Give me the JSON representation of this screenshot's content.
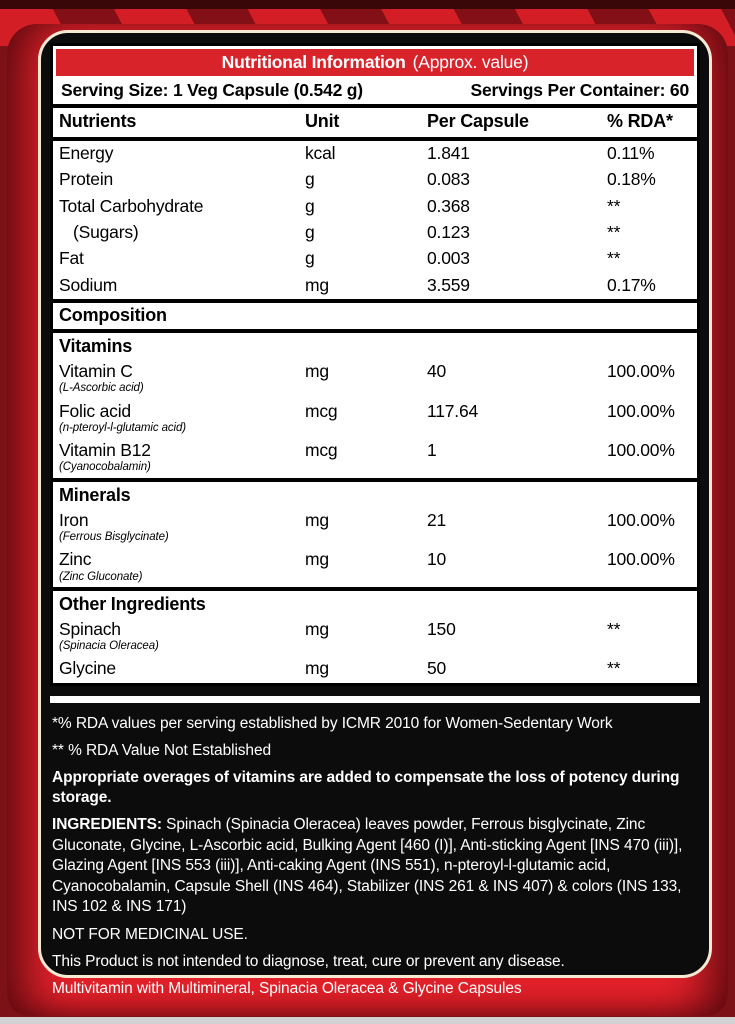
{
  "colors": {
    "brand_red": "#e2222b",
    "title_bar_red": "#d8232b",
    "panel_black": "#0c0c0c",
    "outline_cream": "#f5e9d4"
  },
  "title_bar": {
    "title": "Nutritional Information",
    "subtitle": "(Approx. value)"
  },
  "serving": {
    "size": "Serving Size: 1 Veg Capsule (0.542 g)",
    "per_container": "Servings Per Container: 60"
  },
  "table": {
    "columns": [
      "Nutrients",
      "Unit",
      "Per Capsule",
      "% RDA*"
    ],
    "rows": [
      {
        "name": "Energy",
        "unit": "kcal",
        "per_capsule": "1.841",
        "rda": "0.11%"
      },
      {
        "name": "Protein",
        "unit": "g",
        "per_capsule": "0.083",
        "rda": "0.18%"
      },
      {
        "name": "Total Carbohydrate",
        "unit": "g",
        "per_capsule": "0.368",
        "rda": "**"
      },
      {
        "name": "(Sugars)",
        "unit": "g",
        "per_capsule": "0.123",
        "rda": "**"
      },
      {
        "name": "Fat",
        "unit": "g",
        "per_capsule": "0.003",
        "rda": "**"
      },
      {
        "name": "Sodium",
        "unit": "mg",
        "per_capsule": "3.559",
        "rda": "0.17%"
      }
    ],
    "composition_heading": "Composition",
    "groups": [
      {
        "heading": "Vitamins",
        "rows": [
          {
            "name": "Vitamin C",
            "sub": "(L-Ascorbic acid)",
            "unit": "mg",
            "per_capsule": "40",
            "rda": "100.00%"
          },
          {
            "name": "Folic acid",
            "sub": "(n-pteroyl-l-glutamic acid)",
            "unit": "mcg",
            "per_capsule": "117.64",
            "rda": "100.00%"
          },
          {
            "name": "Vitamin B12",
            "sub": "(Cyanocobalamin)",
            "unit": "mcg",
            "per_capsule": "1",
            "rda": "100.00%"
          }
        ]
      },
      {
        "heading": "Minerals",
        "rows": [
          {
            "name": "Iron",
            "sub": "(Ferrous Bisglycinate)",
            "unit": "mg",
            "per_capsule": "21",
            "rda": "100.00%"
          },
          {
            "name": "Zinc",
            "sub": "(Zinc Gluconate)",
            "unit": "mg",
            "per_capsule": "10",
            "rda": "100.00%"
          }
        ]
      },
      {
        "heading": "Other Ingredients",
        "rows": [
          {
            "name": "Spinach",
            "sub": "(Spinacia Oleracea)",
            "unit": "mg",
            "per_capsule": "150",
            "rda": "**"
          },
          {
            "name": "Glycine",
            "sub": "",
            "unit": "mg",
            "per_capsule": "50",
            "rda": "**"
          }
        ]
      }
    ]
  },
  "footnotes": {
    "rda_note": "*% RDA values per serving established by ICMR 2010 for Women-Sedentary Work",
    "rda_not_established": "** % RDA Value Not Established",
    "overage_note": "Appropriate overages of vitamins are added to compensate the loss of potency during storage.",
    "ingredients_label": "INGREDIENTS:",
    "ingredients_text": " Spinach (Spinacia Oleracea) leaves powder, Ferrous bisglycinate, Zinc Gluconate, Glycine, L-Ascorbic acid, Bulking Agent [460 (I)], Anti-sticking Agent [INS 470 (iii)], Glazing Agent [INS 553 (iii)], Anti-caking Agent (INS 551), n-pteroyl-l-glutamic acid, Cyanocobalamin, Capsule Shell (INS 464), Stabilizer (INS 261 & INS 407) & colors (INS 133, INS 102 & INS 171)",
    "not_medicinal": "NOT FOR MEDICINAL USE.",
    "disclaimer": "This Product is not intended to diagnose, treat, cure or prevent any disease.",
    "product_description": "Multivitamin with Multimineral, Spinacia Oleracea & Glycine Capsules"
  }
}
